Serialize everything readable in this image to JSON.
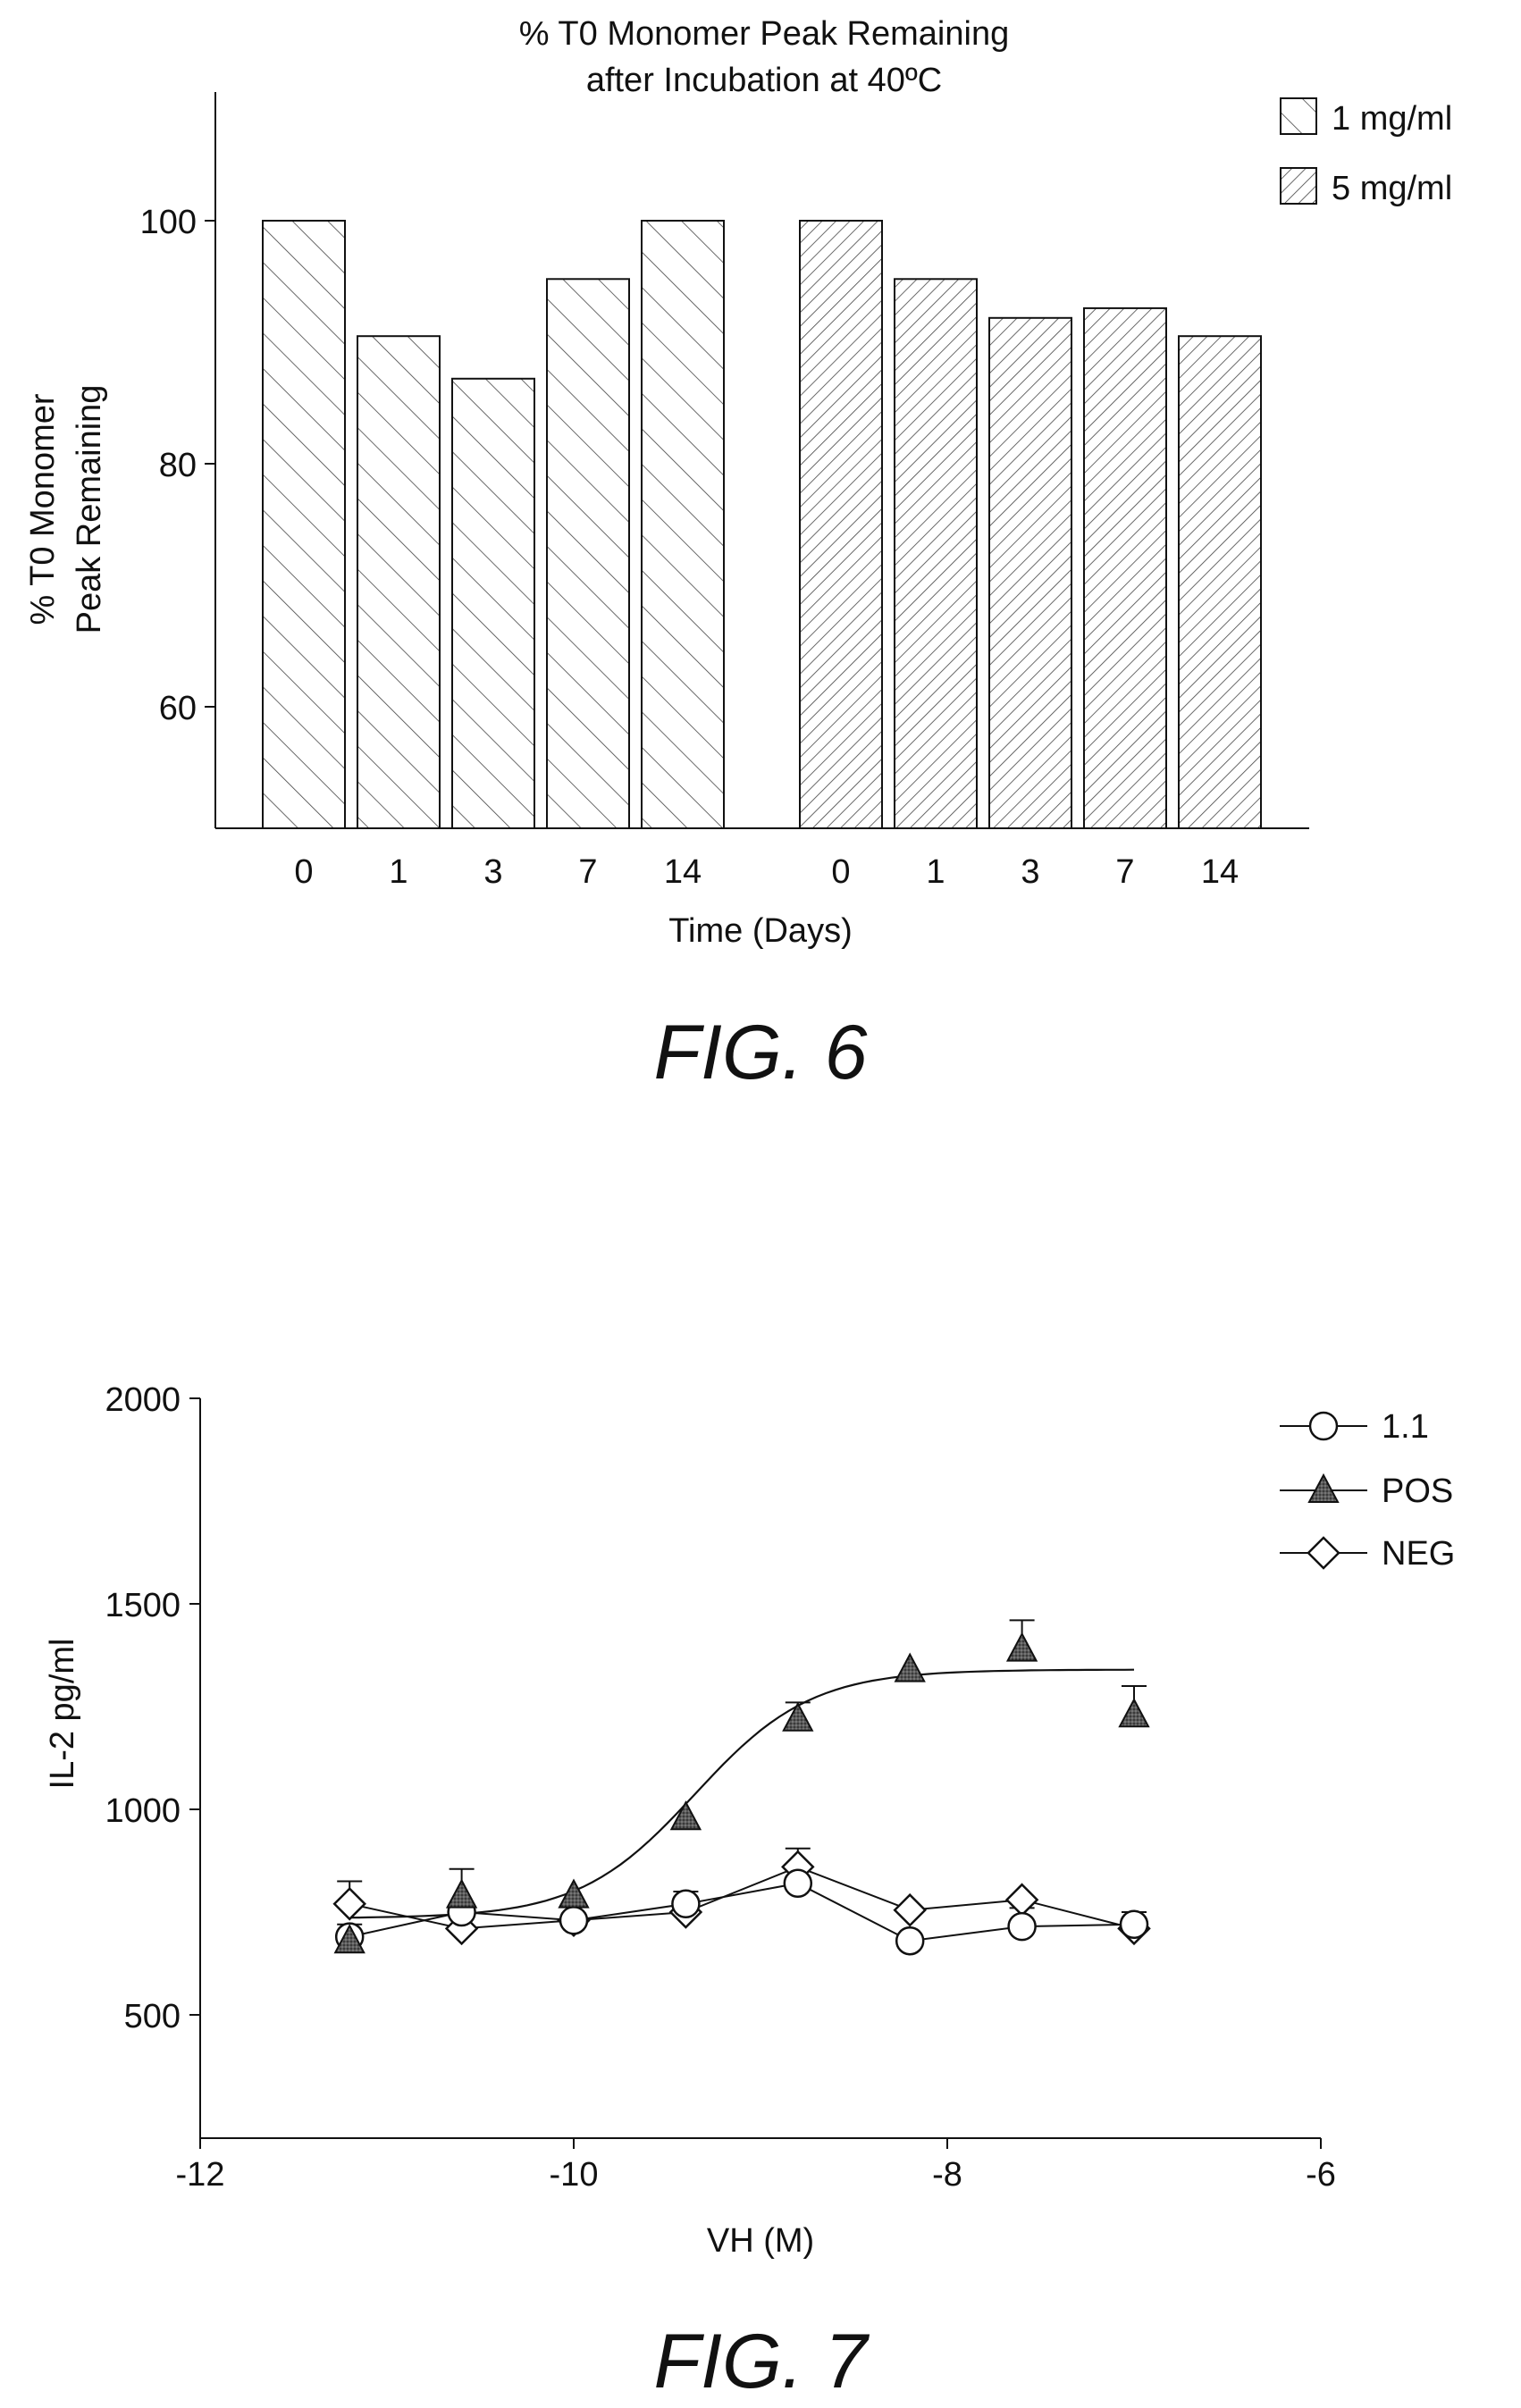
{
  "figures": [
    {
      "caption": "FIG. 6",
      "chart_data": {
        "type": "bar",
        "title": "% T0 Monomer Peak Remaining",
        "subtitle": "after Incubation at 40ºC",
        "ylabel_line1": "% T0 Monomer",
        "ylabel_line2": "Peak Remaining",
        "xlabel": "Time (Days)",
        "ylim": [
          50,
          110
        ],
        "yticks": [
          "60",
          "80",
          "100"
        ],
        "legend_position": "top-right",
        "series": [
          {
            "name": "1 mg/ml",
            "hatch": "forward-diagonal",
            "categories": [
              "0",
              "1",
              "3",
              "7",
              "14"
            ],
            "values": [
              100,
              90.5,
              87,
              95.2,
              100
            ]
          },
          {
            "name": "5 mg/ml",
            "hatch": "backward-diagonal",
            "categories": [
              "0",
              "1",
              "3",
              "7",
              "14"
            ],
            "values": [
              100,
              95.2,
              92,
              92.8,
              90.5
            ]
          }
        ]
      }
    },
    {
      "caption": "FIG. 7",
      "chart_data": {
        "type": "scatter",
        "xlabel": "VH (M)",
        "ylabel": "IL-2 pg/ml",
        "xlim": [
          -12,
          -6
        ],
        "ylim": [
          200,
          2000
        ],
        "xticks": [
          "-12",
          "-10",
          "-8",
          "-6"
        ],
        "yticks": [
          "500",
          "1000",
          "1500",
          "2000"
        ],
        "legend_position": "top-right",
        "series": [
          {
            "name": "1.1",
            "marker": "circle",
            "x": [
              -11.2,
              -10.6,
              -10.0,
              -9.4,
              -8.8,
              -8.2,
              -7.6,
              -7.0
            ],
            "y": [
              690,
              750,
              730,
              770,
              820,
              680,
              715,
              720
            ],
            "err": [
              0,
              0,
              0,
              30,
              0,
              0,
              45,
              30
            ]
          },
          {
            "name": "POS",
            "marker": "triangle",
            "x": [
              -11.2,
              -10.6,
              -10.0,
              -9.4,
              -8.8,
              -8.2,
              -7.6,
              -7.0
            ],
            "y": [
              680,
              790,
              790,
              980,
              1220,
              1340,
              1390,
              1230
            ],
            "err": [
              40,
              65,
              0,
              0,
              40,
              0,
              70,
              70
            ],
            "fit_curve": {
              "bottom": 735,
              "top": 1340,
              "ec50_log": -9.35,
              "hill": 1.4
            }
          },
          {
            "name": "NEG",
            "marker": "diamond",
            "x": [
              -11.2,
              -10.6,
              -10.0,
              -9.4,
              -8.8,
              -8.2,
              -7.6,
              -7.0
            ],
            "y": [
              770,
              710,
              730,
              750,
              860,
              755,
              780,
              710
            ],
            "err": [
              55,
              0,
              0,
              0,
              45,
              0,
              0,
              0
            ]
          }
        ]
      }
    }
  ]
}
